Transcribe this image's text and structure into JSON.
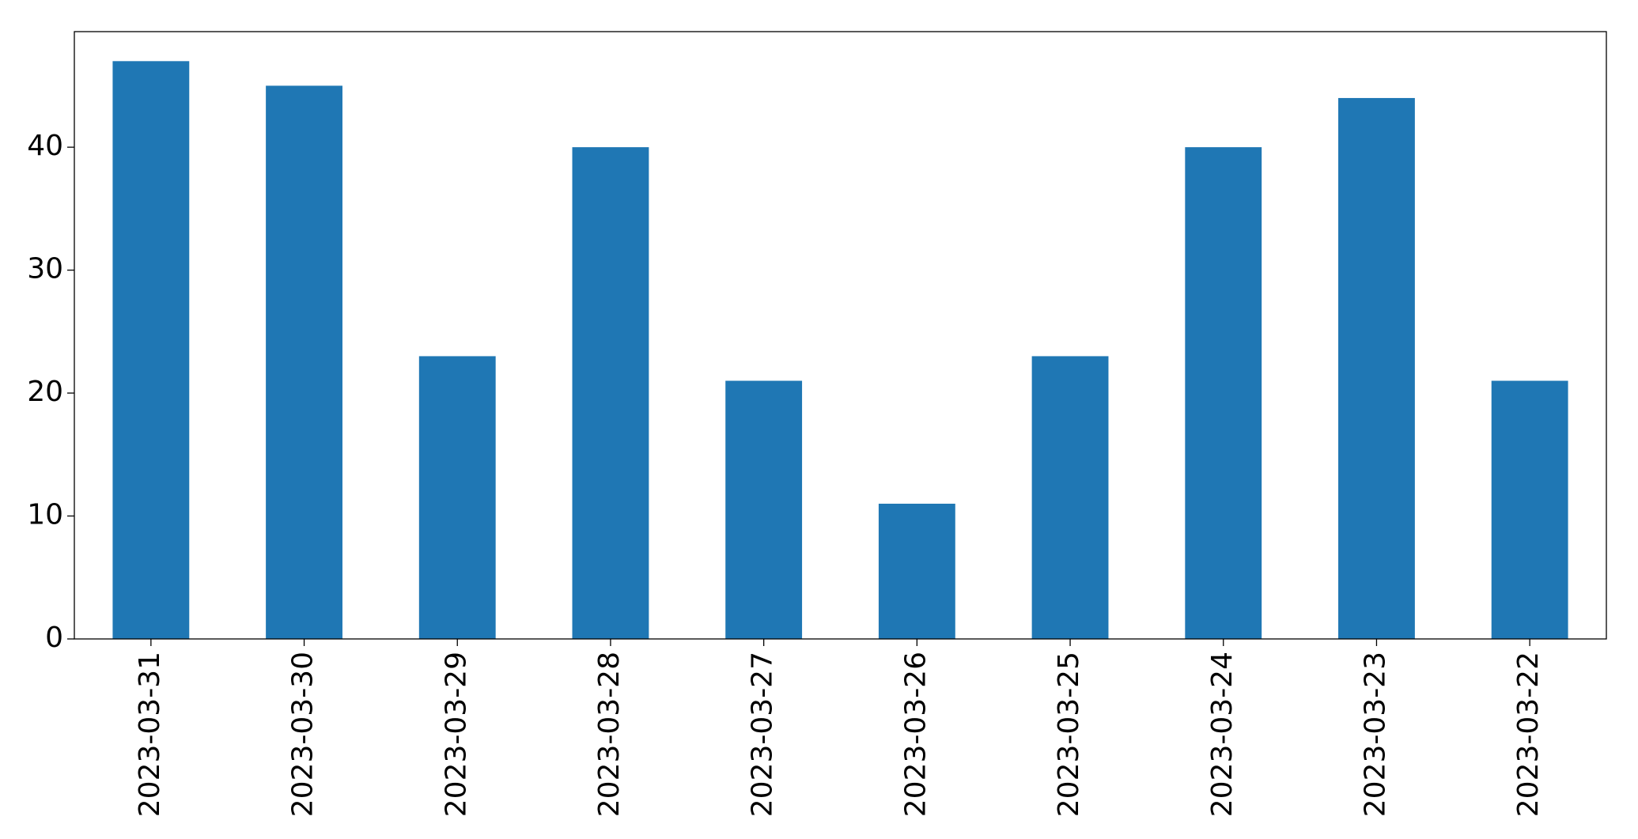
{
  "chart_data": {
    "type": "bar",
    "categories": [
      "2023-03-31",
      "2023-03-30",
      "2023-03-29",
      "2023-03-28",
      "2023-03-27",
      "2023-03-26",
      "2023-03-25",
      "2023-03-24",
      "2023-03-23",
      "2023-03-22"
    ],
    "values": [
      47,
      45,
      23,
      40,
      21,
      11,
      23,
      40,
      44,
      21
    ],
    "color": "#1f77b4",
    "ylim": [
      0,
      49.4
    ],
    "yticks": [
      0,
      10,
      20,
      30,
      40
    ],
    "grid": false
  }
}
